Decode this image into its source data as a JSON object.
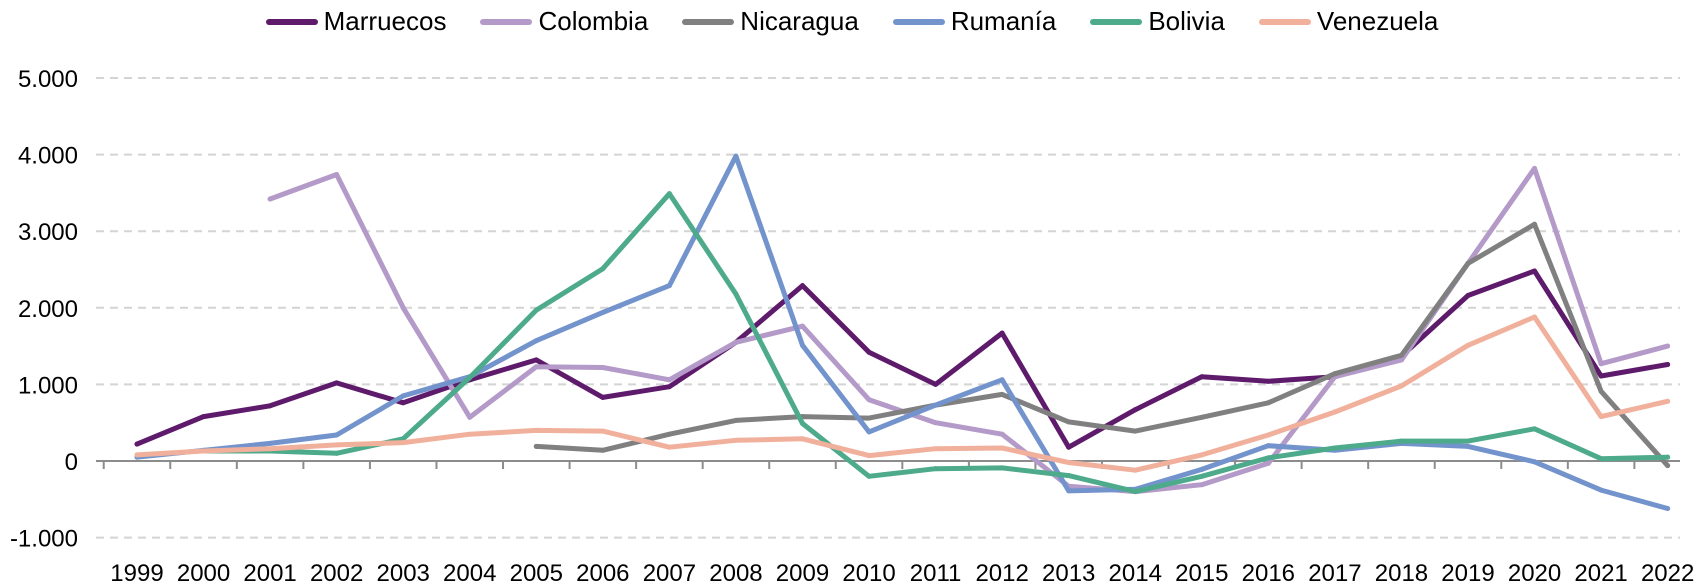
{
  "chart_data": {
    "type": "line",
    "title": "",
    "xlabel": "",
    "ylabel": "",
    "ylim": [
      -1000,
      5000
    ],
    "yticks": [
      -1000,
      0,
      1000,
      2000,
      3000,
      4000,
      5000
    ],
    "ytick_labels": [
      "-1.000",
      "0",
      "1.000",
      "2.000",
      "3.000",
      "4.000",
      "5.000"
    ],
    "grid": "horizontal dashed",
    "legend_position": "top-center",
    "x": [
      "1999",
      "2000",
      "2001",
      "2002",
      "2003",
      "2004",
      "2005",
      "2006",
      "2007",
      "2008",
      "2009",
      "2010",
      "2011",
      "2012",
      "2013",
      "2014",
      "2015",
      "2016",
      "2017",
      "2018",
      "2019",
      "2020",
      "2021",
      "2022"
    ],
    "series": [
      {
        "name": "Marruecos",
        "color": "#5e1a6b",
        "values": [
          220,
          580,
          720,
          1020,
          760,
          1060,
          1320,
          830,
          970,
          1550,
          2290,
          1420,
          1000,
          1670,
          180,
          670,
          1100,
          1040,
          1100,
          1370,
          2160,
          2480,
          1110,
          1260
        ]
      },
      {
        "name": "Colombia",
        "color": "#b49ac8",
        "values": [
          null,
          null,
          3420,
          3740,
          2000,
          570,
          1230,
          1220,
          1060,
          1550,
          1760,
          800,
          500,
          350,
          -330,
          -400,
          -310,
          -30,
          1100,
          1320,
          2580,
          3820,
          1270,
          1500
        ]
      },
      {
        "name": "Nicaragua",
        "color": "#808080",
        "values": [
          null,
          null,
          null,
          null,
          null,
          null,
          190,
          140,
          350,
          530,
          580,
          560,
          730,
          870,
          510,
          390,
          570,
          760,
          1140,
          1380,
          2580,
          3090,
          910,
          -60
        ]
      },
      {
        "name": "Rumanía",
        "color": "#7393cc",
        "values": [
          50,
          140,
          230,
          340,
          850,
          1100,
          1570,
          1940,
          2290,
          3980,
          1510,
          380,
          730,
          1060,
          -390,
          -370,
          -110,
          200,
          140,
          230,
          190,
          -10,
          -380,
          -620
        ]
      },
      {
        "name": "Bolivia",
        "color": "#4daa8a",
        "values": [
          null,
          130,
          130,
          100,
          290,
          1090,
          1970,
          2510,
          3490,
          2180,
          490,
          -200,
          -100,
          -90,
          -190,
          -400,
          -200,
          40,
          170,
          260,
          260,
          420,
          30,
          50
        ]
      },
      {
        "name": "Venezuela",
        "color": "#f0b09c",
        "values": [
          80,
          130,
          160,
          210,
          240,
          350,
          400,
          390,
          180,
          270,
          290,
          70,
          160,
          170,
          -20,
          -120,
          80,
          340,
          640,
          980,
          1510,
          1880,
          580,
          780
        ]
      }
    ]
  }
}
